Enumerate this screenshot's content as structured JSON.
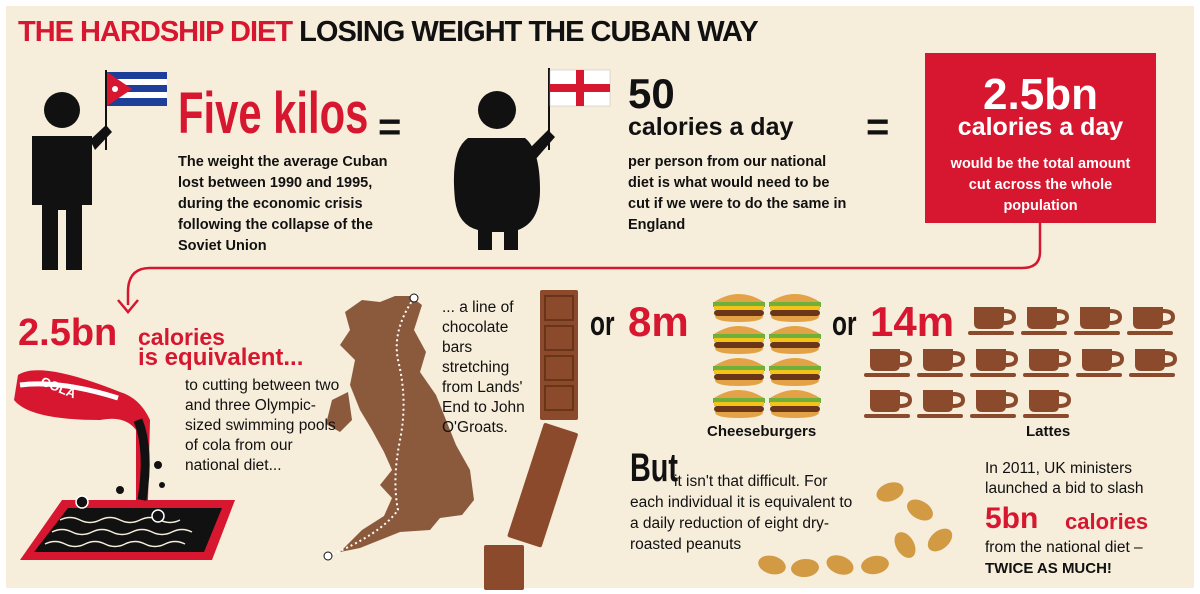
{
  "header": {
    "title_red": "THE HARDSHIP DIET",
    "title_black": "LOSING WEIGHT THE CUBAN WAY"
  },
  "top": {
    "cuba": {
      "headline": "Five kilos",
      "text": "The weight the average Cuban lost between 1990 and 1995, during the economic crisis following the collapse of the Soviet Union"
    },
    "equals": [
      "=",
      "="
    ],
    "england": {
      "number": "50",
      "unit": "calories a day",
      "text": "per person from our national diet is what would need to be cut if we were to do the same in England"
    },
    "total": {
      "number": "2.5bn",
      "unit": "calories a day",
      "text": "would be the total amount cut across the whole population"
    }
  },
  "equivalents": {
    "cola": {
      "number": "2.5bn",
      "unit": "calories",
      "subhead": "is equivalent...",
      "text": "to cutting between two and three Olympic-sized swimming pools of cola from our national diet...",
      "bottle_label": "COLA"
    },
    "chocolate": {
      "text": "... a line of chocolate bars stretching from Lands' End to John O'Groats."
    },
    "burgers": {
      "or": "or",
      "number": "8m",
      "label": "Cheeseburgers"
    },
    "lattes": {
      "or": "or",
      "number": "14m",
      "label": "Lattes"
    }
  },
  "bottom": {
    "peanuts": {
      "lead": "But",
      "text": "it isn't that difficult. For each individual it is equivalent to a daily reduction of eight dry-roasted peanuts"
    },
    "ministers": {
      "intro": "In 2011, UK ministers launched a bid to slash",
      "number": "5bn",
      "unit": "calories",
      "outro": "from the national diet –",
      "emphasis": "TWICE AS MUCH!"
    }
  }
}
